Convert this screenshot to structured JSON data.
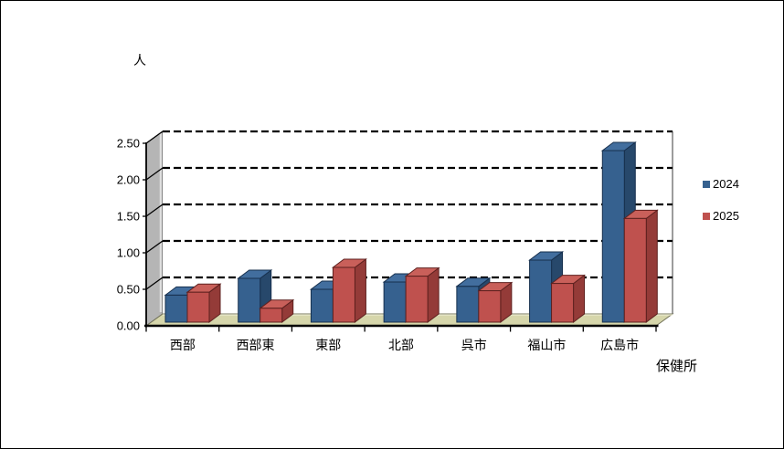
{
  "chart_data": {
    "type": "bar",
    "style": "3d-clustered-column",
    "title": "",
    "ylabel": "人",
    "xlabel": "保健所",
    "categories": [
      "西部",
      "西部東",
      "東部",
      "北部",
      "呉市",
      "福山市",
      "広島市"
    ],
    "series": [
      {
        "name": "2024",
        "color": "#36618F",
        "color_top": "#426E9E",
        "color_side": "#27486B",
        "color_outline": "#17304E",
        "values": [
          0.37,
          0.6,
          0.45,
          0.55,
          0.49,
          0.85,
          2.35
        ]
      },
      {
        "name": "2025",
        "color": "#BF514E",
        "color_top": "#C9605A",
        "color_side": "#943B38",
        "color_outline": "#5E211F",
        "values": [
          0.41,
          0.19,
          0.75,
          0.63,
          0.43,
          0.53,
          1.42
        ]
      }
    ],
    "ylim": [
      0,
      2.5
    ],
    "ytick_step": 0.5,
    "ytick_labels": [
      "0.00",
      "0.50",
      "1.00",
      "1.50",
      "2.00",
      "2.50"
    ],
    "grid": "horizontal-dashed-black",
    "legend_position": "right",
    "colors": {
      "wall": "#B5B5B5",
      "wall_edge": "#3E3E3E",
      "wall_highlight": "#DFDFDF",
      "floor": "#D6D6AB",
      "floor_edge": "#74745A",
      "floor_highlight": "#ECECD2",
      "gridline": "#000000",
      "axis": "#000000",
      "backwall_edge": "#5A5A5A",
      "text": "#000000"
    }
  }
}
